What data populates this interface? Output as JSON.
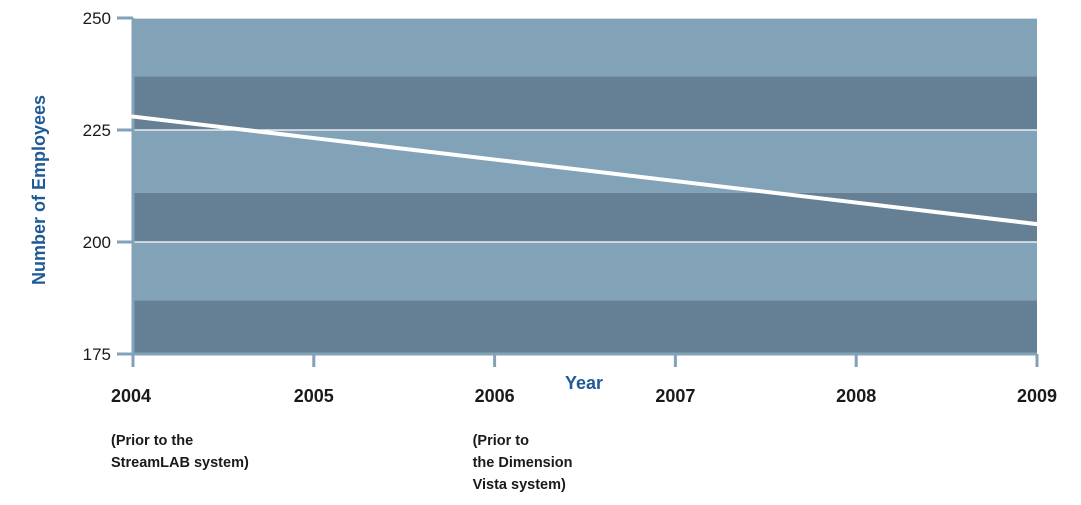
{
  "chart_data": {
    "type": "line",
    "title": "",
    "xlabel": "Year",
    "ylabel": "Number of Employees",
    "x": [
      "2004",
      "2005",
      "2006",
      "2007",
      "2008",
      "2009"
    ],
    "series": [
      {
        "values": [
          228,
          223.2,
          218.4,
          213.6,
          208.8,
          204
        ]
      }
    ],
    "ylim": [
      175,
      250
    ],
    "yticks": [
      175,
      200,
      225,
      250
    ],
    "bands": [
      {
        "from": 237,
        "to": 250,
        "color": "#82a2b8"
      },
      {
        "from": 225,
        "to": 237,
        "color": "#658094"
      },
      {
        "from": 211,
        "to": 225,
        "color": "#82a2b8"
      },
      {
        "from": 200,
        "to": 211,
        "color": "#658094"
      },
      {
        "from": 187,
        "to": 200,
        "color": "#82a2b8"
      },
      {
        "from": 175,
        "to": 187,
        "color": "#658094"
      }
    ],
    "line_color": "#ffffff",
    "axis_color": "#82a2b8",
    "annotations": [
      {
        "x": "2004",
        "text": "(Prior to the\nStreamLAB system)"
      },
      {
        "x": "2006",
        "text": "(Prior to\nthe Dimension\nVista system)"
      }
    ]
  }
}
